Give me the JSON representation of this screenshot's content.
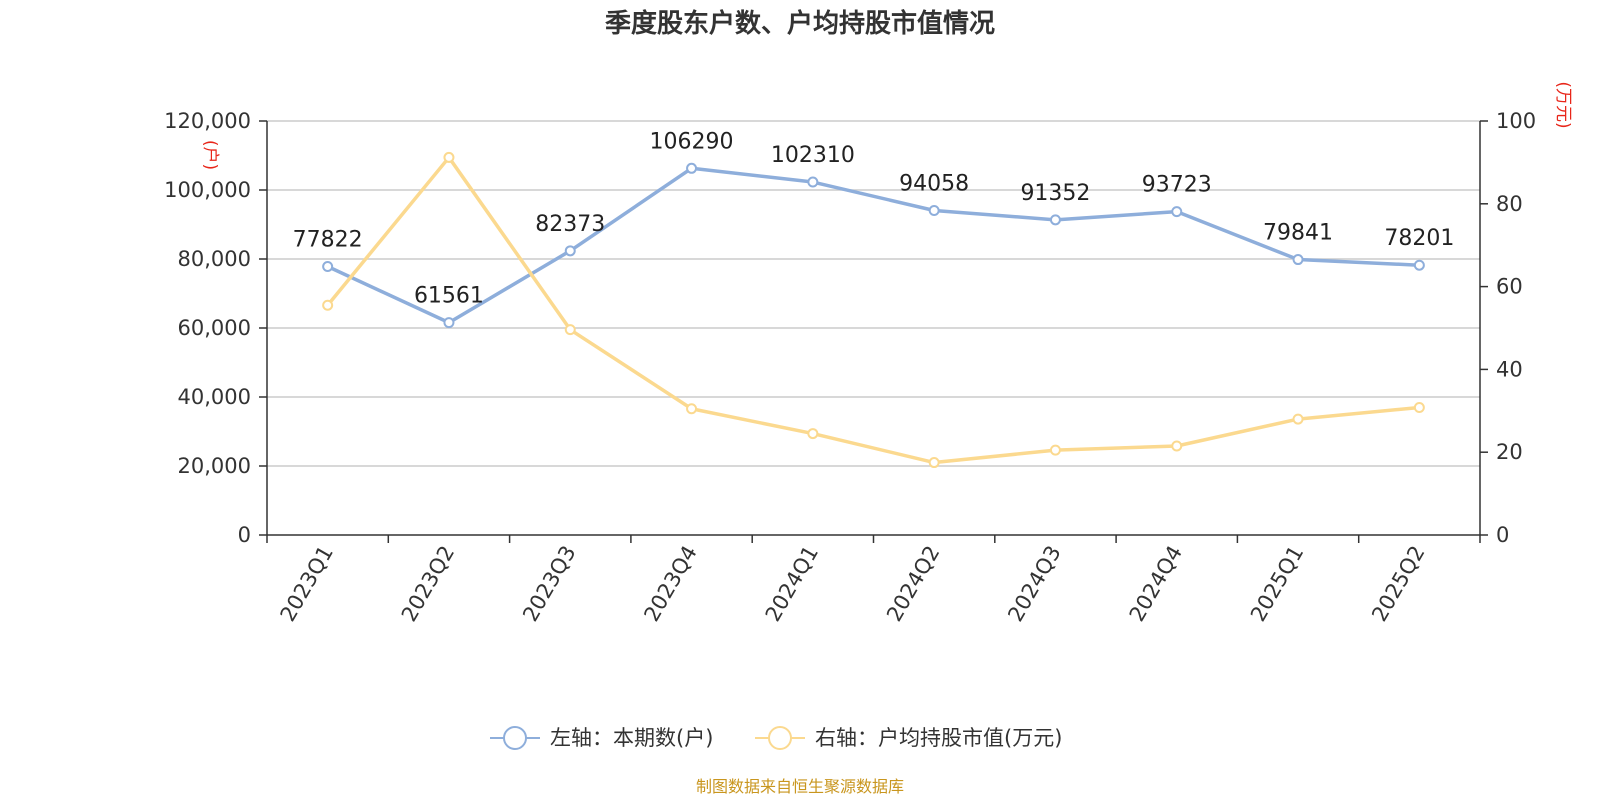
{
  "colors": {
    "left_series": "#8eaedb",
    "right_series": "#fbd98f",
    "unit_text": "#e8261a",
    "source_text": "#c9961e",
    "grid": "#cccccc",
    "axis": "#333333"
  },
  "chart_data": {
    "type": "line",
    "title": "季度股东户数、户均持股市值情况",
    "categories": [
      "2023Q1",
      "2023Q2",
      "2023Q3",
      "2023Q4",
      "2024Q1",
      "2024Q2",
      "2024Q3",
      "2024Q4",
      "2025Q1",
      "2025Q2"
    ],
    "y_left": {
      "unit": "(户)",
      "ylim": [
        0,
        120000
      ],
      "ticks": [
        0,
        20000,
        40000,
        60000,
        80000,
        100000,
        120000
      ],
      "tick_labels": [
        "0",
        "20,000",
        "40,000",
        "60,000",
        "80,000",
        "100,000",
        "120,000"
      ]
    },
    "y_right": {
      "unit": "(万元)",
      "ylim": [
        0,
        100
      ],
      "ticks": [
        0,
        20,
        40,
        60,
        80,
        100
      ],
      "tick_labels": [
        "0",
        "20",
        "40",
        "60",
        "80",
        "100"
      ]
    },
    "series": [
      {
        "name": "左轴：本期数(户)",
        "axis": "left",
        "values": [
          77822,
          61561,
          82373,
          106290,
          102310,
          94058,
          91352,
          93723,
          79841,
          78201
        ],
        "data_labels": [
          "77822",
          "61561",
          "82373",
          "106290",
          "102310",
          "94058",
          "91352",
          "93723",
          "79841",
          "78201"
        ]
      },
      {
        "name": "右轴：户均持股市值(万元)",
        "axis": "right",
        "values": [
          55.5,
          91.2,
          49.6,
          30.5,
          24.5,
          17.5,
          20.5,
          21.5,
          28.0,
          30.8
        ]
      }
    ],
    "grid": true,
    "legend_position": "bottom-center",
    "source": "制图数据来自恒生聚源数据库"
  }
}
